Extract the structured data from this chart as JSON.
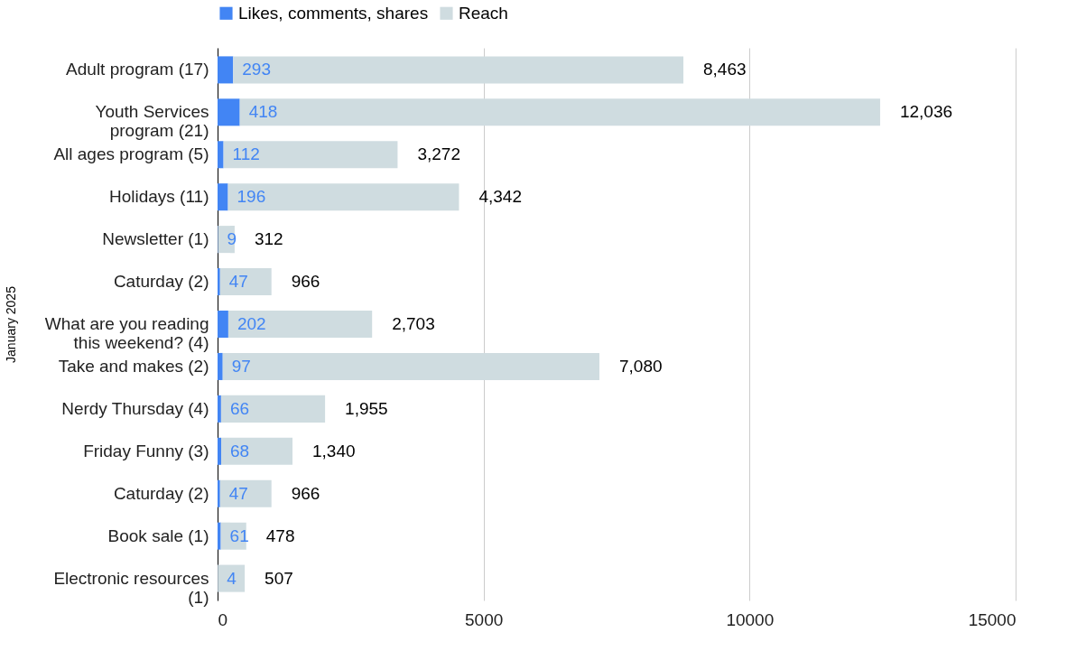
{
  "chart_data": {
    "type": "bar",
    "orientation": "horizontal",
    "stacked": true,
    "ylabel": "January 2025",
    "categories": [
      "Adult program (17)",
      "Youth Services\nprogram (21)",
      "All ages program (5)",
      "Holidays (11)",
      "Newsletter (1)",
      "Caturday (2)",
      "What are you reading\nthis weekend? (4)",
      "Take and makes (2)",
      "Nerdy Thursday (4)",
      "Friday Funny (3)",
      "Caturday (2)",
      "Book sale (1)",
      "Electronic resources\n(1)"
    ],
    "series": [
      {
        "name": "Likes, comments, shares",
        "color": "#4285f4",
        "values": [
          293,
          418,
          112,
          196,
          9,
          47,
          202,
          97,
          66,
          68,
          47,
          61,
          4
        ],
        "value_labels": [
          "293",
          "418",
          "112",
          "196",
          "9",
          "47",
          "202",
          "97",
          "66",
          "68",
          "47",
          "61",
          "4"
        ]
      },
      {
        "name": "Reach",
        "color": "#cfdce0",
        "values": [
          8463,
          12036,
          3272,
          4342,
          312,
          966,
          2703,
          7080,
          1955,
          1340,
          966,
          478,
          507
        ],
        "value_labels": [
          "8,463",
          "12,036",
          "3,272",
          "4,342",
          "312",
          "966",
          "2,703",
          "7,080",
          "1,955",
          "1,340",
          "966",
          "478",
          "507"
        ]
      }
    ],
    "xlim": [
      0,
      15000
    ],
    "xticks": [
      0,
      5000,
      10000,
      15000
    ],
    "grid": "x",
    "legend": "top"
  }
}
